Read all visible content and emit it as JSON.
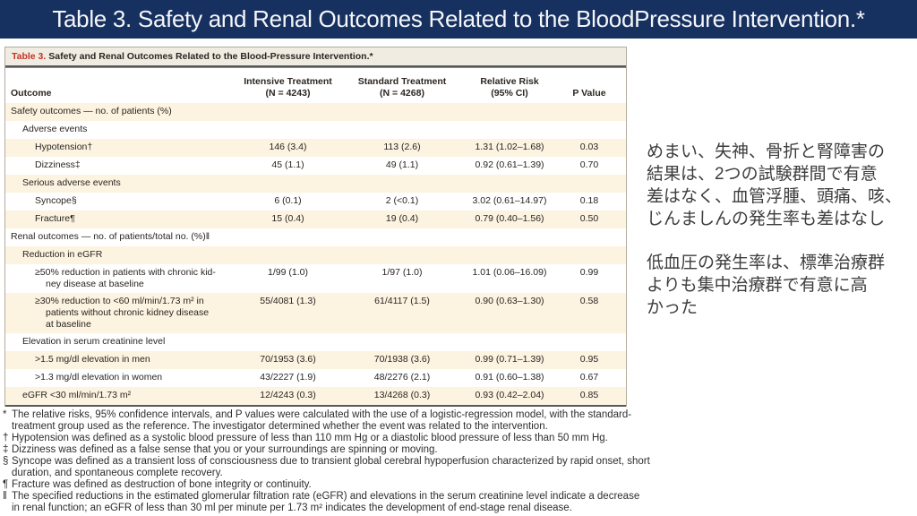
{
  "slide": {
    "title": "Table 3. Safety and Renal Outcomes Related to the BloodPressure Intervention.*"
  },
  "table": {
    "caption_label": "Table 3.",
    "caption_text": " Safety and Renal Outcomes Related to the Blood-Pressure Intervention.*",
    "columns": [
      "Outcome",
      "Intensive Treatment\n(N = 4243)",
      "Standard Treatment\n(N = 4268)",
      "Relative Risk\n(95% CI)",
      "P Value"
    ],
    "rows": [
      {
        "label": "Safety outcomes — no. of patients (%)",
        "indent": 0,
        "shade": true,
        "values": [
          "",
          "",
          "",
          ""
        ]
      },
      {
        "label": "Adverse events",
        "indent": 1,
        "shade": false,
        "values": [
          "",
          "",
          "",
          ""
        ]
      },
      {
        "label": "Hypotension†",
        "indent": 2,
        "shade": true,
        "values": [
          "146 (3.4)",
          "113 (2.6)",
          "1.31 (1.02–1.68)",
          "0.03"
        ]
      },
      {
        "label": "Dizziness‡",
        "indent": 2,
        "shade": false,
        "values": [
          "45 (1.1)",
          "49 (1.1)",
          "0.92 (0.61–1.39)",
          "0.70"
        ]
      },
      {
        "label": "Serious adverse events",
        "indent": 1,
        "shade": true,
        "values": [
          "",
          "",
          "",
          ""
        ]
      },
      {
        "label": "Syncope§",
        "indent": 2,
        "shade": false,
        "values": [
          "6 (0.1)",
          "2 (<0.1)",
          "3.02 (0.61–14.97)",
          "0.18"
        ]
      },
      {
        "label": "Fracture¶",
        "indent": 2,
        "shade": true,
        "values": [
          "15 (0.4)",
          "19 (0.4)",
          "0.79 (0.40–1.56)",
          "0.50"
        ]
      },
      {
        "label": "Renal outcomes — no. of patients/total no. (%)‖",
        "indent": 0,
        "shade": false,
        "values": [
          "",
          "",
          "",
          ""
        ]
      },
      {
        "label": "Reduction in eGFR",
        "indent": 1,
        "shade": true,
        "values": [
          "",
          "",
          "",
          ""
        ]
      },
      {
        "label": "≥50% reduction in patients with chronic kid-\nney disease at baseline",
        "indent": 2,
        "shade": false,
        "values": [
          "1/99 (1.0)",
          "1/97 (1.0)",
          "1.01 (0.06–16.09)",
          "0.99"
        ]
      },
      {
        "label": "≥30% reduction to <60 ml/min/1.73 m² in\npatients without chronic kidney disease\nat baseline",
        "indent": 2,
        "shade": true,
        "values": [
          "55/4081 (1.3)",
          "61/4117 (1.5)",
          "0.90 (0.63–1.30)",
          "0.58"
        ]
      },
      {
        "label": "Elevation in serum creatinine level",
        "indent": 1,
        "shade": false,
        "values": [
          "",
          "",
          "",
          ""
        ]
      },
      {
        "label": ">1.5 mg/dl elevation in men",
        "indent": 2,
        "shade": true,
        "values": [
          "70/1953 (3.6)",
          "70/1938 (3.6)",
          "0.99 (0.71–1.39)",
          "0.95"
        ]
      },
      {
        "label": ">1.3 mg/dl elevation in women",
        "indent": 2,
        "shade": false,
        "values": [
          "43/2227 (1.9)",
          "48/2276 (2.1)",
          "0.91 (0.60–1.38)",
          "0.67"
        ]
      },
      {
        "label": "eGFR <30 ml/min/1.73 m²",
        "indent": 1,
        "shade": true,
        "values": [
          "12/4243 (0.3)",
          "13/4268 (0.3)",
          "0.93 (0.42–2.04)",
          "0.85"
        ]
      }
    ]
  },
  "footnotes": [
    {
      "symbol": "*",
      "text": "The relative risks, 95% confidence intervals, and P values were calculated with the use of a logistic-regression model, with the standard-\ntreatment group used as the reference. The investigator determined whether the event was related to the intervention."
    },
    {
      "symbol": "†",
      "text": "Hypotension was defined as a systolic blood pressure of less than 110 mm Hg or a diastolic blood pressure of less than 50 mm Hg."
    },
    {
      "symbol": "‡",
      "text": "Dizziness was defined as a false sense that you or your surroundings are spinning or moving."
    },
    {
      "symbol": "§",
      "text": "Syncope was defined as a transient loss of consciousness due to transient global cerebral hypoperfusion characterized by rapid onset, short\nduration, and spontaneous complete recovery."
    },
    {
      "symbol": "¶",
      "text": "Fracture was defined as destruction of bone integrity or continuity."
    },
    {
      "symbol": "‖",
      "text": "The specified reductions in the estimated glomerular filtration rate (eGFR) and elevations in the serum creatinine level indicate a decrease\nin renal function; an eGFR of less than 30 ml per minute per 1.73 m² indicates the development of end-stage renal disease."
    }
  ],
  "annotations": [
    {
      "text": "めまい、失神、骨折と腎障害の\n結果は、2つの試験群間で有意\n差はなく、血管浮腫、頭痛、咳、\nじんましんの発生率も差はなし"
    },
    {
      "text": "低血圧の発生率は、標準治療群\nよりも集中治療群で有意に高\nかった"
    }
  ],
  "colors": {
    "title_bar": "#16305f",
    "title_text": "#f5f6fa",
    "caption_strip": "#f1ece1",
    "caption_label_red": "#c53226",
    "row_shade": "#fcf3e0",
    "rule": "#58595b",
    "table_text": "#2a2522",
    "annotation_text": "#3d3d3d"
  }
}
